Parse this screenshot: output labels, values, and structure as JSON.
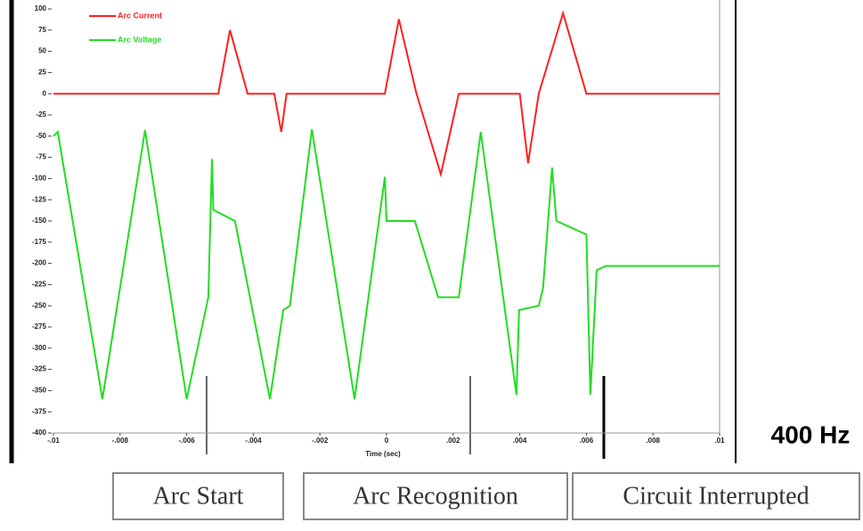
{
  "chart_data": {
    "type": "line",
    "xlabel": "Time (sec)",
    "series": [
      {
        "name": "Arc Current",
        "color": "#ff2020",
        "x": [
          -0.01,
          -0.00505,
          -0.0047,
          -0.00417,
          -0.00337,
          -0.00316,
          -0.003,
          -5e-05,
          0.00037,
          0.0009,
          0.00163,
          0.00217,
          0.004,
          0.00425,
          0.00457,
          0.0053,
          0.006,
          0.01
        ],
        "values": [
          0,
          0,
          75,
          0,
          0,
          -45,
          0,
          0,
          88,
          0,
          -95,
          0,
          0,
          -82,
          0,
          95,
          0,
          0
        ]
      },
      {
        "name": "Arc Voltage",
        "color": "#22dd22",
        "x": [
          -0.01,
          -0.00987,
          -0.00853,
          -0.00725,
          -0.006,
          -0.00535,
          -0.00524,
          -0.0052,
          -0.00455,
          -0.0035,
          -0.0031,
          -0.0029,
          -0.00224,
          -0.00096,
          -5e-05,
          0,
          0.00085,
          0.00155,
          0.00217,
          0.00283,
          0.0039,
          0.00398,
          0.00457,
          0.0047,
          0.00497,
          0.0051,
          0.006,
          0.00612,
          0.00631,
          0.00658,
          0.01
        ],
        "values": [
          -50,
          -45,
          -360,
          -43,
          -360,
          -240,
          -77,
          -137,
          -150,
          -360,
          -255,
          -250,
          -42,
          -360,
          -98,
          -150,
          -150,
          -240,
          -240,
          -45,
          -355,
          -255,
          -250,
          -229,
          -87,
          -150,
          -166,
          -355,
          -208,
          -203,
          -203
        ]
      }
    ],
    "xlim": [
      -0.01,
      0.01
    ],
    "xticks": [
      {
        "value": -0.01,
        "label": "-.01"
      },
      {
        "value": -0.008,
        "label": "-.008"
      },
      {
        "value": -0.006,
        "label": "-.006"
      },
      {
        "value": -0.004,
        "label": "-.004"
      },
      {
        "value": -0.002,
        "label": "-.002"
      },
      0,
      {
        "value": 0.002,
        "label": ".002"
      },
      {
        "value": 0.004,
        "label": ".004"
      },
      {
        "value": 0.006,
        "label": ".006"
      },
      {
        "value": 0.008,
        "label": ".008"
      },
      {
        "value": 0.01,
        "label": ".01"
      }
    ],
    "ylim": [
      -400,
      100
    ],
    "yticks": [
      100,
      75,
      50,
      25,
      0,
      -25,
      -50,
      -75,
      -100,
      -125,
      -150,
      -175,
      -200,
      -225,
      -250,
      -275,
      -300,
      -325,
      -350,
      -375,
      -400
    ],
    "annotation": "400 Hz",
    "legend": "upper left"
  },
  "buttons": [
    "Arc Start",
    "Arc Recognition",
    "Circuit Interrupted"
  ]
}
